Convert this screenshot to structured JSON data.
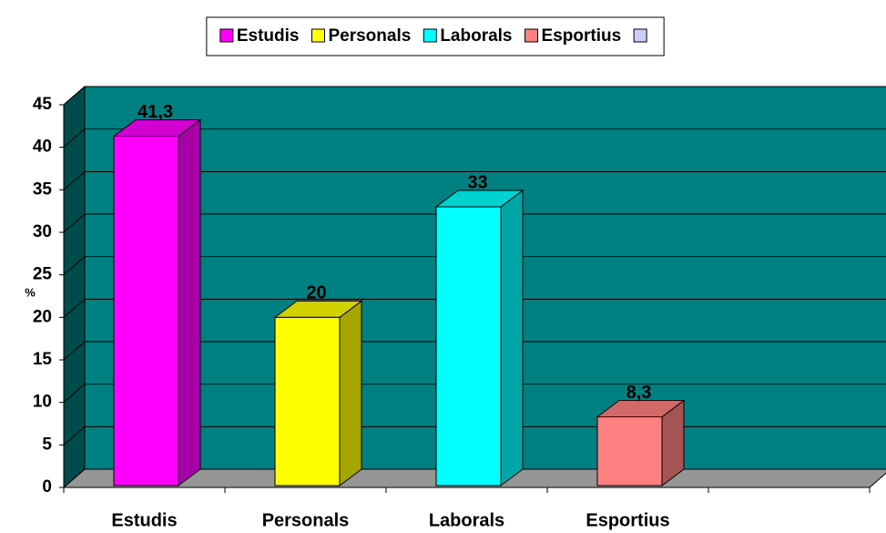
{
  "chart_data": {
    "type": "bar3d",
    "categories": [
      "Estudis",
      "Personals",
      "Laborals",
      "Esportius",
      null
    ],
    "values": [
      41.3,
      20,
      33,
      8.3,
      null
    ],
    "value_labels": [
      "41,3",
      "20",
      "33",
      "8,3",
      null
    ],
    "colors": [
      "#ff00ff",
      "#ffff00",
      "#00ffff",
      "#ff8080",
      "#ccccff"
    ],
    "y_label": "%",
    "ylim": [
      0,
      45
    ],
    "yticks": [
      0,
      5,
      10,
      15,
      20,
      25,
      30,
      35,
      40,
      45
    ],
    "grid": true,
    "legend": "top"
  }
}
